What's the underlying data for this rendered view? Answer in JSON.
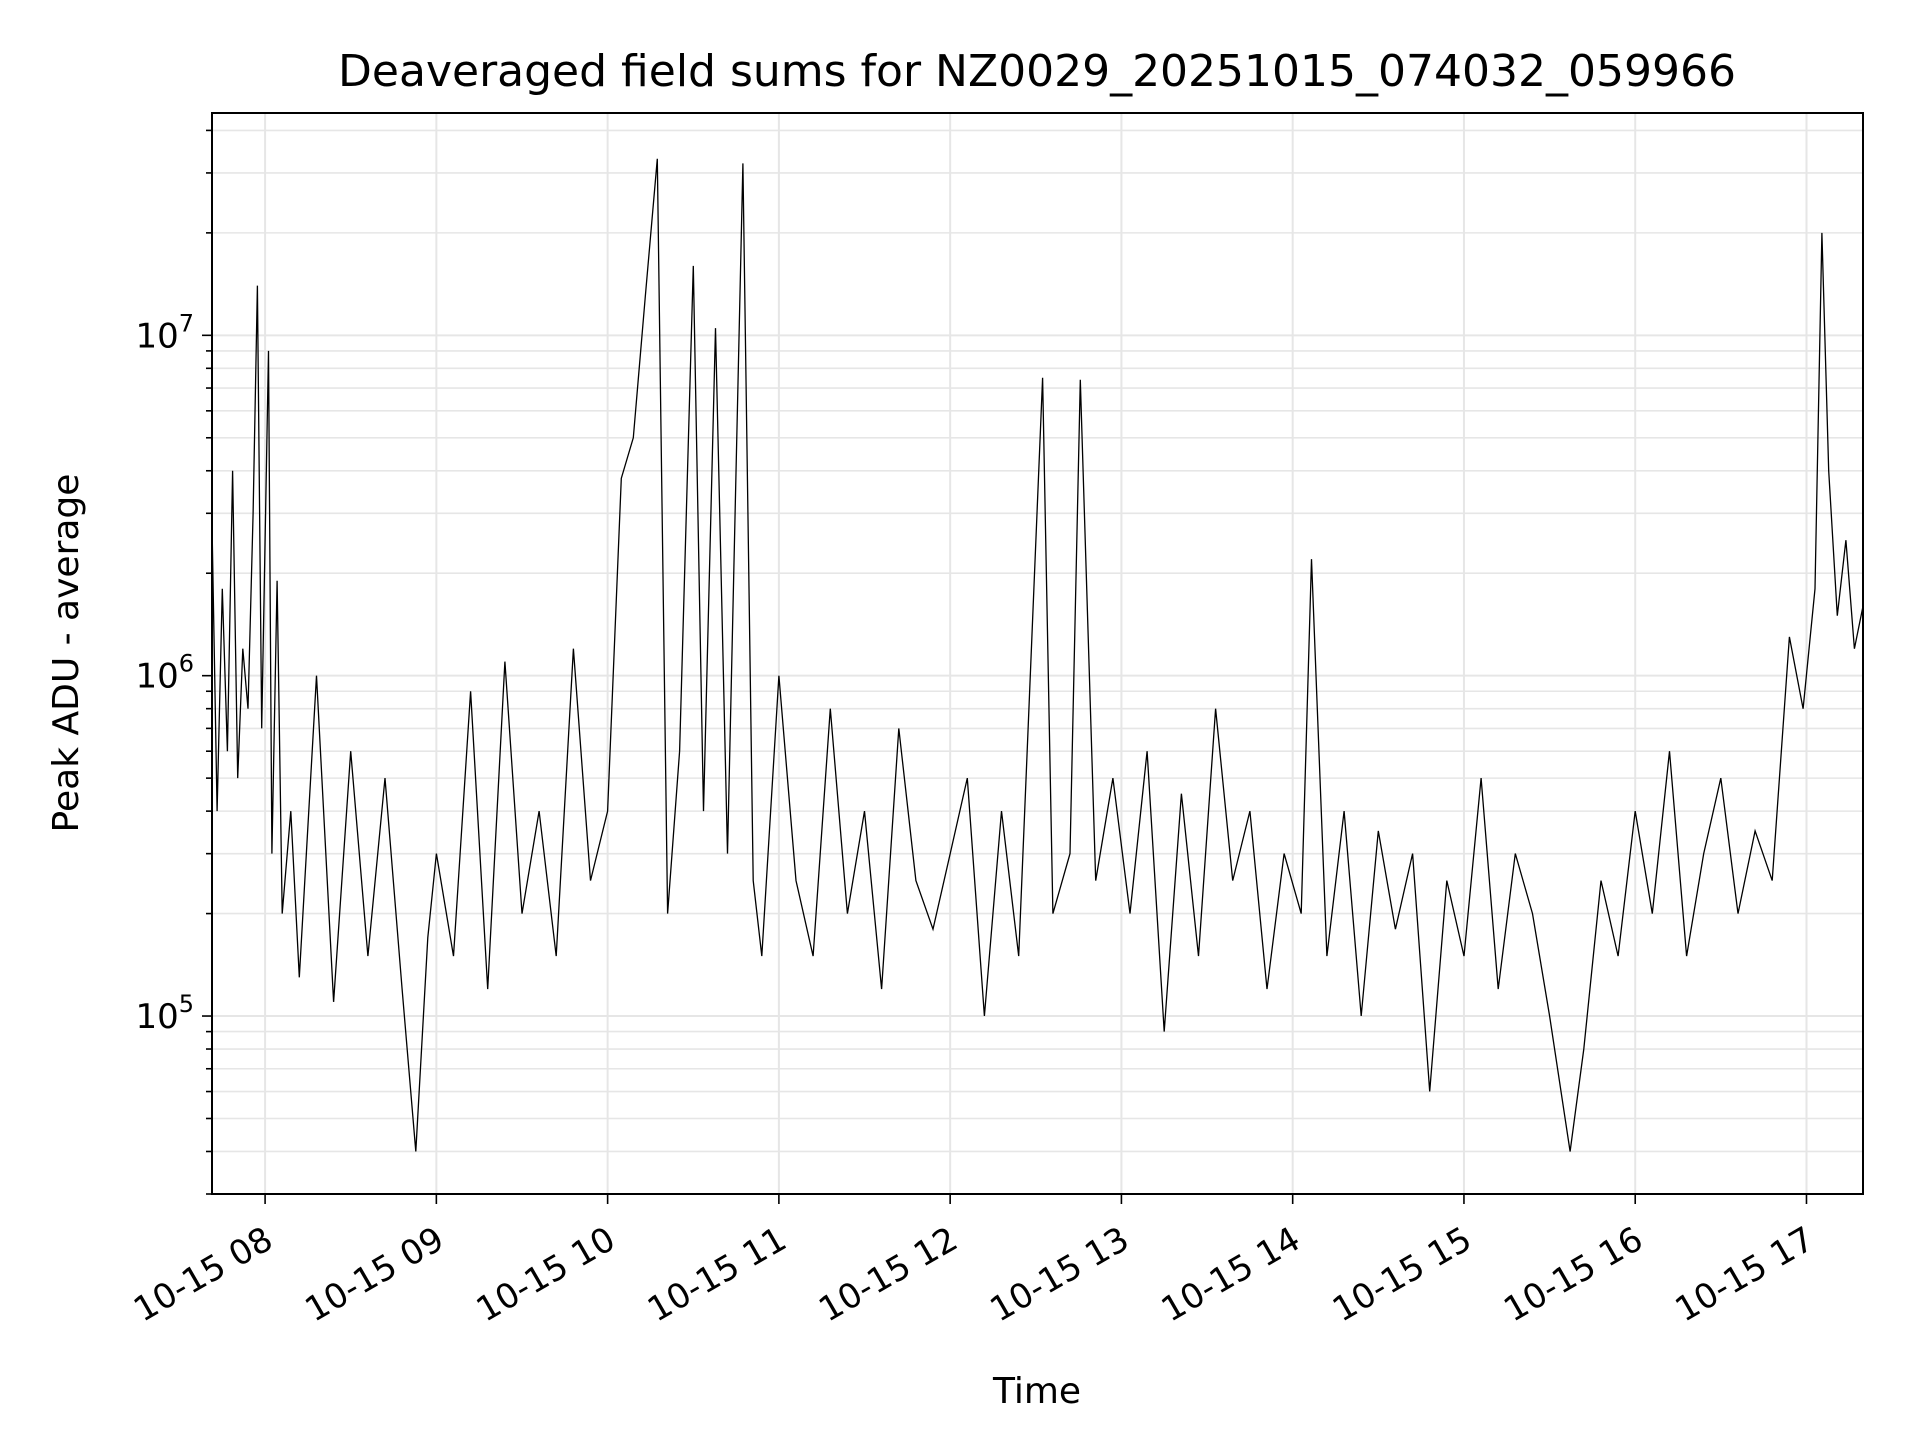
{
  "chart_data": {
    "type": "line",
    "title": "Deaveraged field sums for NZ0029_20251015_074032_059966",
    "xlabel": "Time",
    "ylabel": "Peak ADU - average",
    "yscale": "log",
    "ylim": [
      30000,
      45000000
    ],
    "xlim_hours": [
      7.69,
      17.33
    ],
    "grid": true,
    "x_ticks": [
      {
        "hour": 8,
        "label": "10-15 08"
      },
      {
        "hour": 9,
        "label": "10-15 09"
      },
      {
        "hour": 10,
        "label": "10-15 10"
      },
      {
        "hour": 11,
        "label": "10-15 11"
      },
      {
        "hour": 12,
        "label": "10-15 12"
      },
      {
        "hour": 13,
        "label": "10-15 13"
      },
      {
        "hour": 14,
        "label": "10-15 14"
      },
      {
        "hour": 15,
        "label": "10-15 15"
      },
      {
        "hour": 16,
        "label": "10-15 16"
      },
      {
        "hour": 17,
        "label": "10-15 17"
      }
    ],
    "y_ticks": [
      {
        "value": 100000,
        "base": "10",
        "exp": "5"
      },
      {
        "value": 1000000,
        "base": "10",
        "exp": "6"
      },
      {
        "value": 10000000,
        "base": "10",
        "exp": "7"
      }
    ],
    "series": [
      {
        "name": "Peak ADU - average",
        "color": "#000000",
        "x_hours": [
          7.69,
          7.72,
          7.75,
          7.78,
          7.81,
          7.84,
          7.87,
          7.9,
          7.93,
          7.955,
          7.98,
          8.02,
          8.04,
          8.07,
          8.1,
          8.15,
          8.2,
          8.3,
          8.4,
          8.5,
          8.6,
          8.7,
          8.8,
          8.88,
          8.95,
          9.0,
          9.1,
          9.2,
          9.3,
          9.4,
          9.5,
          9.6,
          9.7,
          9.8,
          9.9,
          10.0,
          10.08,
          10.15,
          10.22,
          10.29,
          10.35,
          10.42,
          10.5,
          10.56,
          10.63,
          10.7,
          10.79,
          10.85,
          10.9,
          11.0,
          11.1,
          11.2,
          11.3,
          11.4,
          11.5,
          11.6,
          11.7,
          11.8,
          11.9,
          12.0,
          12.1,
          12.2,
          12.3,
          12.4,
          12.54,
          12.6,
          12.7,
          12.76,
          12.85,
          12.95,
          13.05,
          13.15,
          13.25,
          13.35,
          13.45,
          13.55,
          13.65,
          13.75,
          13.85,
          13.95,
          14.05,
          14.11,
          14.2,
          14.3,
          14.4,
          14.5,
          14.6,
          14.7,
          14.8,
          14.9,
          15.0,
          15.1,
          15.2,
          15.3,
          15.4,
          15.5,
          15.62,
          15.7,
          15.8,
          15.9,
          16.0,
          16.1,
          16.2,
          16.3,
          16.4,
          16.5,
          16.6,
          16.7,
          16.8,
          16.9,
          16.98,
          17.05,
          17.09,
          17.13,
          17.18,
          17.23,
          17.28,
          17.33
        ],
        "values": [
          2800000,
          400000,
          1800000,
          600000,
          4000000,
          500000,
          1200000,
          800000,
          3000000,
          14000000,
          700000,
          9000000,
          300000,
          1900000,
          200000,
          400000,
          130000,
          1000000,
          110000,
          600000,
          150000,
          500000,
          120000,
          40000,
          170000,
          300000,
          150000,
          900000,
          120000,
          1100000,
          200000,
          400000,
          150000,
          1200000,
          250000,
          400000,
          3800000,
          5000000,
          13000000,
          33000000,
          200000,
          600000,
          16000000,
          400000,
          10500000,
          300000,
          32000000,
          250000,
          150000,
          1000000,
          250000,
          150000,
          800000,
          200000,
          400000,
          120000,
          700000,
          250000,
          180000,
          300000,
          500000,
          100000,
          400000,
          150000,
          7500000,
          200000,
          300000,
          7400000,
          250000,
          500000,
          200000,
          600000,
          90000,
          450000,
          150000,
          800000,
          250000,
          400000,
          120000,
          300000,
          200000,
          2200000,
          150000,
          400000,
          100000,
          350000,
          180000,
          300000,
          60000,
          250000,
          150000,
          500000,
          120000,
          300000,
          200000,
          100000,
          40000,
          80000,
          250000,
          150000,
          400000,
          200000,
          600000,
          150000,
          300000,
          500000,
          200000,
          350000,
          250000,
          1300000,
          800000,
          1800000,
          20000000,
          4000000,
          1500000,
          2500000,
          1200000,
          1600000
        ]
      }
    ]
  }
}
